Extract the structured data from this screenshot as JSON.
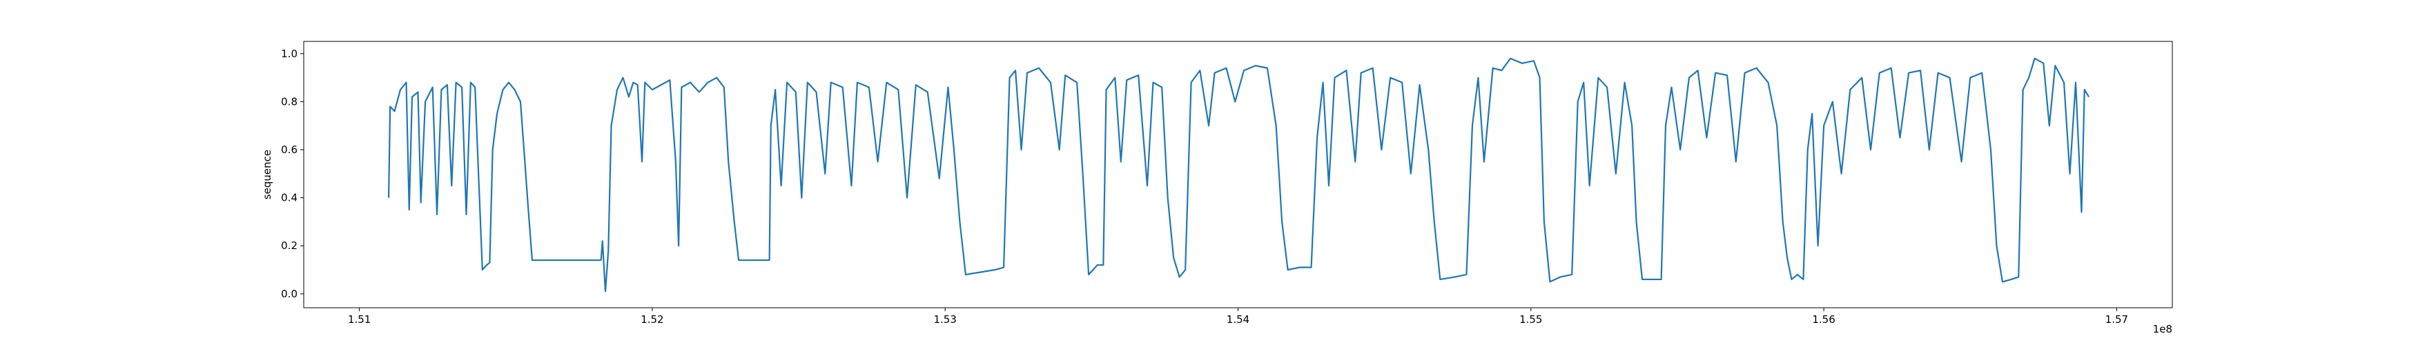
{
  "chart_data": {
    "type": "line",
    "ylabel": "sequence",
    "x_offset_text": "1e8",
    "x": [
      151100000,
      151105000,
      151120000,
      151140000,
      151160000,
      151170000,
      151180000,
      151200000,
      151210000,
      151225000,
      151250000,
      151265000,
      151280000,
      151300000,
      151315000,
      151330000,
      151350000,
      151365000,
      151380000,
      151395000,
      151405000,
      151420000,
      151435000,
      151445000,
      151455000,
      151470000,
      151490000,
      151510000,
      151530000,
      151550000,
      151565000,
      151575000,
      151590000,
      151650000,
      151720000,
      151800000,
      151825000,
      151830000,
      151840000,
      151850000,
      151860000,
      151880000,
      151900000,
      151920000,
      151935000,
      151950000,
      151965000,
      151975000,
      152000000,
      152030000,
      152060000,
      152080000,
      152090000,
      152100000,
      152130000,
      152160000,
      152190000,
      152220000,
      152245000,
      152260000,
      152280000,
      152295000,
      152350000,
      152400000,
      152405000,
      152420000,
      152440000,
      152460000,
      152490000,
      152510000,
      152530000,
      152560000,
      152590000,
      152610000,
      152650000,
      152680000,
      152700000,
      152740000,
      152770000,
      152800000,
      152840000,
      152870000,
      152900000,
      152940000,
      152980000,
      153010000,
      153030000,
      153050000,
      153070000,
      153120000,
      153170000,
      153200000,
      153220000,
      153240000,
      153260000,
      153280000,
      153320000,
      153360000,
      153390000,
      153410000,
      153450000,
      153470000,
      153490000,
      153520000,
      153540000,
      153550000,
      153580000,
      153600000,
      153620000,
      153660000,
      153690000,
      153710000,
      153740000,
      153760000,
      153780000,
      153800000,
      153820000,
      153840000,
      153870000,
      153900000,
      153920000,
      153960000,
      153990000,
      154020000,
      154060000,
      154100000,
      154130000,
      154150000,
      154170000,
      154210000,
      154250000,
      154270000,
      154290000,
      154310000,
      154330000,
      154370000,
      154400000,
      154420000,
      154460000,
      154490000,
      154520000,
      154560000,
      154590000,
      154620000,
      154650000,
      154670000,
      154690000,
      154740000,
      154780000,
      154800000,
      154820000,
      154840000,
      154870000,
      154900000,
      154930000,
      154970000,
      155010000,
      155030000,
      155045000,
      155065000,
      155100000,
      155140000,
      155160000,
      155180000,
      155200000,
      155230000,
      155260000,
      155290000,
      155320000,
      155345000,
      155360000,
      155380000,
      155420000,
      155445000,
      155460000,
      155480000,
      155510000,
      155540000,
      155570000,
      155600000,
      155630000,
      155670000,
      155700000,
      155730000,
      155770000,
      155810000,
      155840000,
      155860000,
      155875000,
      155890000,
      155910000,
      155930000,
      155945000,
      155960000,
      155980000,
      156000000,
      156030000,
      156060000,
      156090000,
      156130000,
      156160000,
      156190000,
      156230000,
      156260000,
      156290000,
      156330000,
      156360000,
      156390000,
      156430000,
      156470000,
      156500000,
      156540000,
      156570000,
      156590000,
      156610000,
      156640000,
      156665000,
      156680000,
      156700000,
      156720000,
      156750000,
      156770000,
      156790000,
      156820000,
      156840000,
      156860000,
      156880000,
      156890000,
      156905000
    ],
    "series": [
      {
        "color": "#1f77b4",
        "values": [
          0.4,
          0.78,
          0.76,
          0.85,
          0.88,
          0.35,
          0.82,
          0.84,
          0.38,
          0.8,
          0.86,
          0.33,
          0.85,
          0.87,
          0.45,
          0.88,
          0.86,
          0.33,
          0.88,
          0.86,
          0.55,
          0.1,
          0.12,
          0.13,
          0.6,
          0.75,
          0.85,
          0.88,
          0.85,
          0.8,
          0.55,
          0.38,
          0.14,
          0.14,
          0.14,
          0.14,
          0.14,
          0.22,
          0.01,
          0.18,
          0.7,
          0.85,
          0.9,
          0.82,
          0.88,
          0.87,
          0.55,
          0.88,
          0.85,
          0.87,
          0.89,
          0.55,
          0.2,
          0.86,
          0.88,
          0.84,
          0.88,
          0.9,
          0.86,
          0.55,
          0.3,
          0.14,
          0.14,
          0.14,
          0.7,
          0.85,
          0.45,
          0.88,
          0.84,
          0.4,
          0.88,
          0.84,
          0.5,
          0.88,
          0.86,
          0.45,
          0.88,
          0.86,
          0.55,
          0.88,
          0.85,
          0.4,
          0.87,
          0.84,
          0.48,
          0.86,
          0.6,
          0.3,
          0.08,
          0.09,
          0.1,
          0.11,
          0.9,
          0.93,
          0.6,
          0.92,
          0.94,
          0.88,
          0.6,
          0.91,
          0.88,
          0.5,
          0.08,
          0.12,
          0.12,
          0.85,
          0.9,
          0.55,
          0.89,
          0.91,
          0.45,
          0.88,
          0.86,
          0.4,
          0.15,
          0.07,
          0.1,
          0.88,
          0.93,
          0.7,
          0.92,
          0.94,
          0.8,
          0.93,
          0.95,
          0.94,
          0.7,
          0.3,
          0.1,
          0.11,
          0.11,
          0.65,
          0.88,
          0.45,
          0.9,
          0.93,
          0.55,
          0.92,
          0.94,
          0.6,
          0.9,
          0.88,
          0.5,
          0.87,
          0.6,
          0.3,
          0.06,
          0.07,
          0.08,
          0.7,
          0.9,
          0.55,
          0.94,
          0.93,
          0.98,
          0.96,
          0.97,
          0.9,
          0.3,
          0.05,
          0.07,
          0.08,
          0.8,
          0.88,
          0.45,
          0.9,
          0.86,
          0.5,
          0.88,
          0.7,
          0.3,
          0.06,
          0.06,
          0.06,
          0.7,
          0.86,
          0.6,
          0.9,
          0.93,
          0.65,
          0.92,
          0.91,
          0.55,
          0.92,
          0.94,
          0.88,
          0.7,
          0.3,
          0.15,
          0.06,
          0.08,
          0.06,
          0.6,
          0.75,
          0.2,
          0.7,
          0.8,
          0.5,
          0.85,
          0.9,
          0.6,
          0.92,
          0.94,
          0.65,
          0.92,
          0.93,
          0.6,
          0.92,
          0.9,
          0.55,
          0.9,
          0.92,
          0.6,
          0.2,
          0.05,
          0.06,
          0.07,
          0.85,
          0.9,
          0.98,
          0.96,
          0.7,
          0.95,
          0.88,
          0.5,
          0.88,
          0.34,
          0.85,
          0.82
        ]
      }
    ],
    "xlim": [
      150810000,
      157190000
    ],
    "xticks": [
      {
        "value": 151000000,
        "label": "1.51"
      },
      {
        "value": 152000000,
        "label": "1.52"
      },
      {
        "value": 153000000,
        "label": "1.53"
      },
      {
        "value": 154000000,
        "label": "1.54"
      },
      {
        "value": 155000000,
        "label": "1.55"
      },
      {
        "value": 156000000,
        "label": "1.56"
      },
      {
        "value": 157000000,
        "label": "1.57"
      }
    ],
    "ylim": [
      -0.058,
      1.051
    ],
    "yticks": [
      {
        "value": 0,
        "label": "0.0"
      },
      0.2,
      0.4,
      0.6,
      0.8,
      {
        "value": 1,
        "label": "1.0"
      }
    ],
    "grid": false
  }
}
